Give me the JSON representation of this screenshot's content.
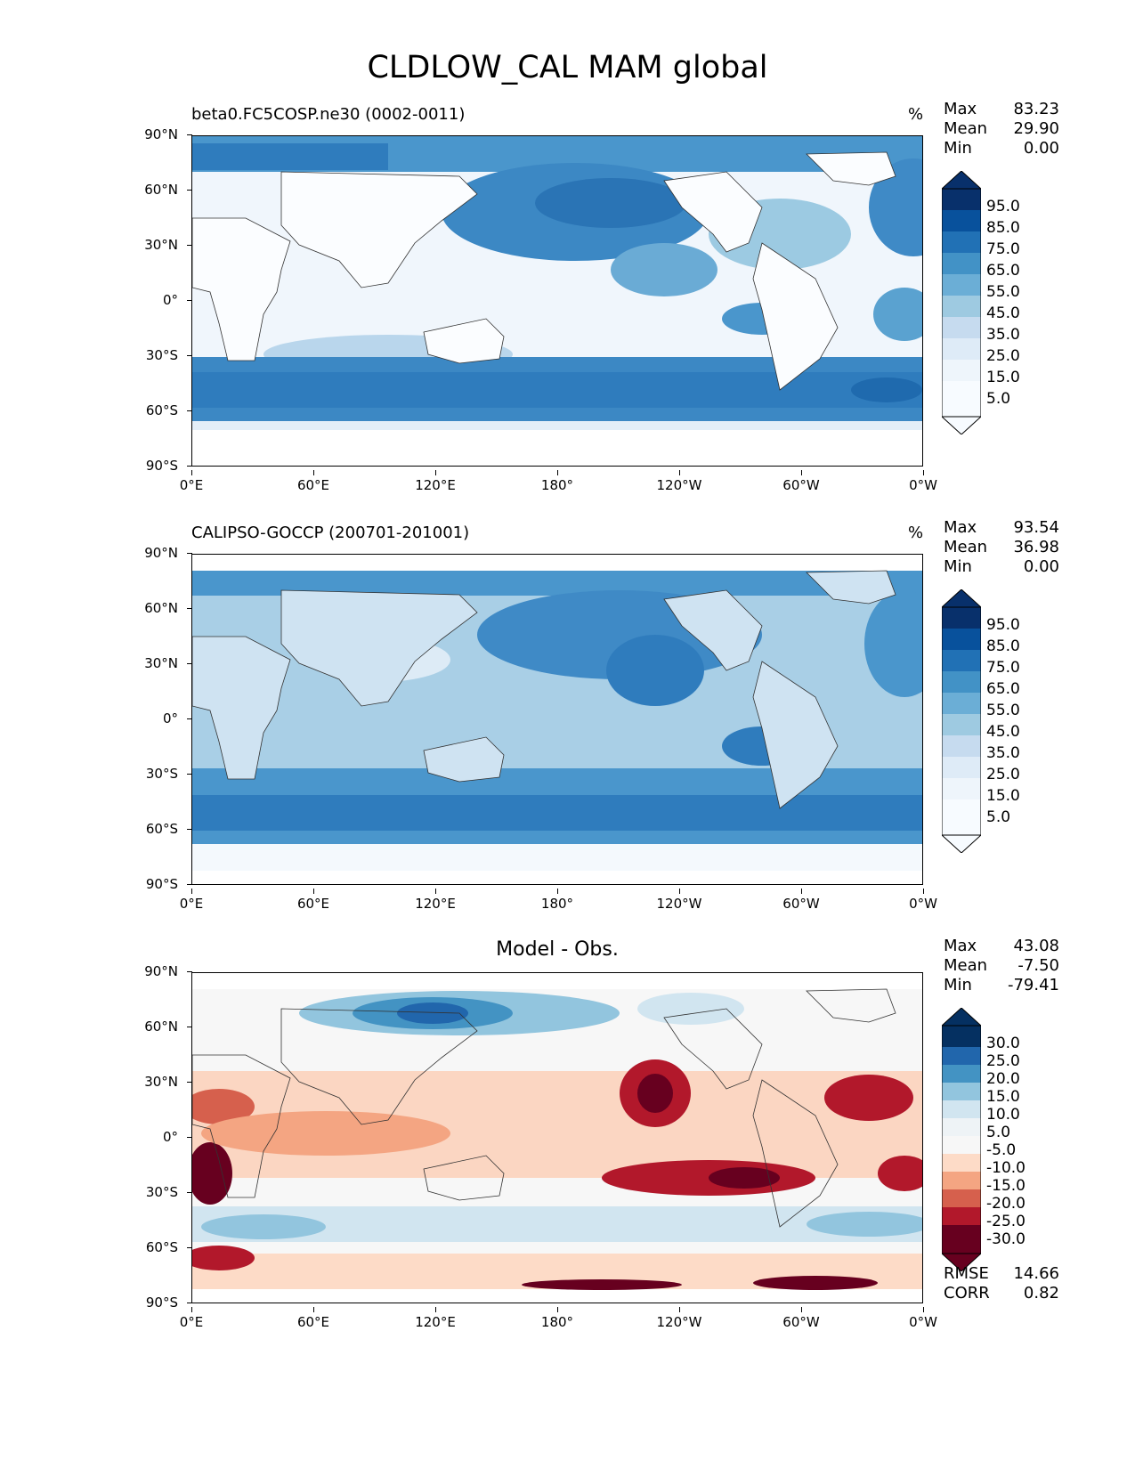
{
  "figure": {
    "title": "CLDLOW_CAL MAM global"
  },
  "axes": {
    "yticks": [
      "90°N",
      "60°N",
      "30°N",
      "0°",
      "30°S",
      "60°S",
      "90°S"
    ],
    "xticks": [
      "0°E",
      "60°E",
      "120°E",
      "180°",
      "120°W",
      "60°W",
      "0°W"
    ]
  },
  "panels": [
    {
      "label": "beta0.FC5COSP.ne30 (0002-0011)",
      "units": "%",
      "stats": [
        {
          "name": "Max",
          "value": "83.23"
        },
        {
          "name": "Mean",
          "value": "29.90"
        },
        {
          "name": "Min",
          "value": "0.00"
        }
      ],
      "colorbar": [
        "95.0",
        "85.0",
        "75.0",
        "65.0",
        "55.0",
        "45.0",
        "35.0",
        "25.0",
        "15.0",
        "5.0"
      ]
    },
    {
      "label": "CALIPSO-GOCCP (200701-201001)",
      "units": "%",
      "stats": [
        {
          "name": "Max",
          "value": "93.54"
        },
        {
          "name": "Mean",
          "value": "36.98"
        },
        {
          "name": "Min",
          "value": "0.00"
        }
      ],
      "colorbar": [
        "95.0",
        "85.0",
        "75.0",
        "65.0",
        "55.0",
        "45.0",
        "35.0",
        "25.0",
        "15.0",
        "5.0"
      ]
    },
    {
      "label": "Model - Obs.",
      "stats": [
        {
          "name": "Max",
          "value": "43.08"
        },
        {
          "name": "Mean",
          "value": "-7.50"
        },
        {
          "name": "Min",
          "value": "-79.41"
        }
      ],
      "colorbar": [
        "30.0",
        "25.0",
        "20.0",
        "15.0",
        "10.0",
        "5.0",
        "-5.0",
        "-10.0",
        "-15.0",
        "-20.0",
        "-25.0",
        "-30.0"
      ],
      "metrics": [
        {
          "name": "RMSE",
          "value": "14.66"
        },
        {
          "name": "CORR",
          "value": "0.82"
        }
      ]
    }
  ],
  "colors": {
    "blues": [
      "#f7fbff",
      "#deebf7",
      "#c6dbef",
      "#9ecae1",
      "#6baed6",
      "#4292c6",
      "#2171b5",
      "#08519c",
      "#08306b"
    ],
    "diverging": [
      "#67001f",
      "#b2182b",
      "#d6604d",
      "#f4a582",
      "#fddbc7",
      "#f7f7f7",
      "#d1e5f0",
      "#92c5de",
      "#4393c3",
      "#2166ac",
      "#053061"
    ]
  }
}
